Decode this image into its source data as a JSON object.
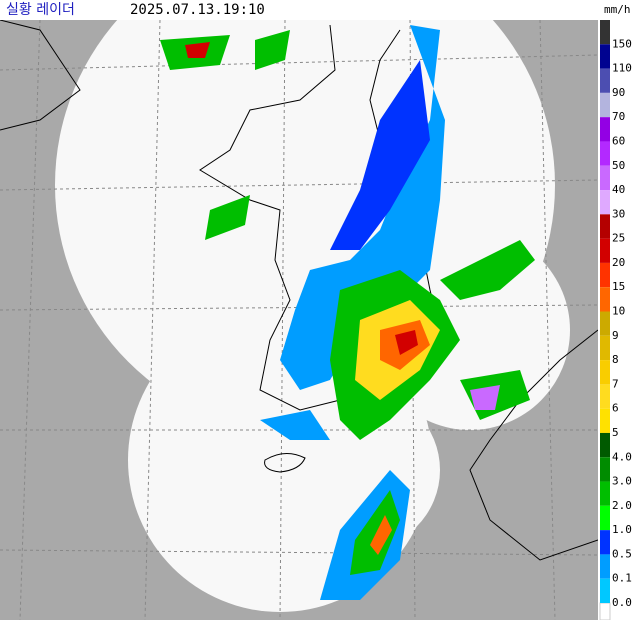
{
  "header": {
    "title": "실황 레이더",
    "time": "2025.07.13.19:10",
    "unit": "mm/h"
  },
  "legend": {
    "items": [
      {
        "label": "150",
        "color": "#333333"
      },
      {
        "label": "110",
        "color": "#000390"
      },
      {
        "label": "90",
        "color": "#4c4eb1"
      },
      {
        "label": "70",
        "color": "#b3b4de"
      },
      {
        "label": "60",
        "color": "#9300e4"
      },
      {
        "label": "50",
        "color": "#b329ff"
      },
      {
        "label": "40",
        "color": "#c969ff"
      },
      {
        "label": "30",
        "color": "#dfa9ff"
      },
      {
        "label": "25",
        "color": "#b40000"
      },
      {
        "label": "20",
        "color": "#d20000"
      },
      {
        "label": "15",
        "color": "#ff3300"
      },
      {
        "label": "10",
        "color": "#ff6600"
      },
      {
        "label": "9",
        "color": "#ccaa00"
      },
      {
        "label": "8",
        "color": "#e0b900"
      },
      {
        "label": "7",
        "color": "#f9cd00"
      },
      {
        "label": "6",
        "color": "#ffdc1f"
      },
      {
        "label": "5",
        "color": "#ffe100"
      },
      {
        "label": "4.0",
        "color": "#005a00"
      },
      {
        "label": "3.0",
        "color": "#008c00"
      },
      {
        "label": "2.0",
        "color": "#00be00"
      },
      {
        "label": "1.0",
        "color": "#00ff00"
      },
      {
        "label": "0.5",
        "color": "#0033ff"
      },
      {
        "label": "0.1",
        "color": "#009dff"
      },
      {
        "label": "0.0",
        "color": "#00c8ff"
      }
    ]
  }
}
